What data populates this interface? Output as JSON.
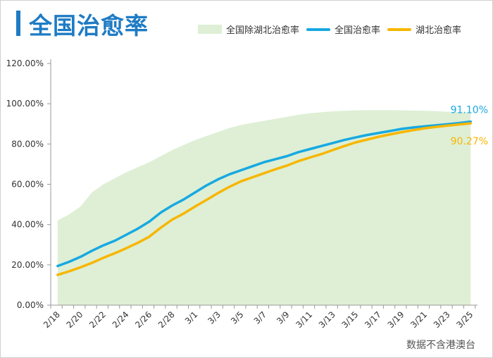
{
  "title": "全国治愈率",
  "source": "数据不含港澳台",
  "colors": {
    "area": "#deefd5",
    "national": "#17a9e1",
    "hubei": "#f7b600",
    "title": "#1e7bc4"
  },
  "chart_data": {
    "type": "line",
    "title": "全国治愈率",
    "xlabel": "",
    "ylabel": "",
    "ylim": [
      0,
      120
    ],
    "yticks": [
      "0.00%",
      "20.00%",
      "40.00%",
      "60.00%",
      "80.00%",
      "100.00%",
      "120.00%"
    ],
    "x": [
      "2/18",
      "2/19",
      "2/20",
      "2/21",
      "2/22",
      "2/23",
      "2/24",
      "2/25",
      "2/26",
      "2/27",
      "2/28",
      "2/29",
      "3/1",
      "3/2",
      "3/3",
      "3/4",
      "3/5",
      "3/6",
      "3/7",
      "3/8",
      "3/9",
      "3/10",
      "3/11",
      "3/12",
      "3/13",
      "3/14",
      "3/15",
      "3/16",
      "3/17",
      "3/18",
      "3/19",
      "3/20",
      "3/21",
      "3/22",
      "3/23",
      "3/24",
      "3/25"
    ],
    "xtick_labels": [
      "2/18",
      "2/20",
      "2/22",
      "2/24",
      "2/26",
      "2/28",
      "3/1",
      "3/3",
      "3/5",
      "3/7",
      "3/9",
      "3/11",
      "3/13",
      "3/15",
      "3/17",
      "3/19",
      "3/21",
      "3/23",
      "3/25"
    ],
    "legend_position": "top",
    "series": [
      {
        "name": "全国除湖北治愈率",
        "kind": "area",
        "values": [
          42,
          45,
          49,
          56,
          60,
          63,
          66,
          68.5,
          71,
          74,
          77,
          79.5,
          82,
          84,
          86,
          88,
          89.5,
          90.5,
          91.5,
          92.5,
          93.5,
          94.5,
          95.3,
          95.8,
          96.2,
          96.5,
          96.7,
          96.8,
          96.8,
          96.8,
          96.7,
          96.6,
          96.5,
          96.3,
          96,
          95.8,
          95.5
        ]
      },
      {
        "name": "全国治愈率",
        "kind": "line",
        "values": [
          19.4,
          21.5,
          24,
          27,
          29.7,
          32,
          35,
          38,
          41.5,
          46,
          49.5,
          52.5,
          56,
          59.5,
          62.5,
          65,
          67,
          69,
          71,
          72.5,
          74,
          76,
          77.5,
          79,
          80.5,
          82,
          83.3,
          84.5,
          85.5,
          86.5,
          87.5,
          88.2,
          88.8,
          89.3,
          89.8,
          90.4,
          91.1
        ]
      },
      {
        "name": "湖北治愈率",
        "kind": "line",
        "values": [
          15,
          16.8,
          18.8,
          21,
          23.5,
          25.8,
          28.3,
          31,
          34,
          38.5,
          42.5,
          45.5,
          49,
          52.3,
          55.7,
          58.8,
          61.5,
          63.5,
          65.5,
          67.5,
          69.3,
          71.5,
          73.3,
          75,
          77,
          79,
          80.8,
          82.2,
          83.6,
          84.8,
          85.9,
          86.9,
          87.8,
          88.5,
          89.1,
          89.7,
          90.27
        ]
      }
    ],
    "annotations": [
      {
        "series": "全国治愈率",
        "text": "91.10%"
      },
      {
        "series": "湖北治愈率",
        "text": "90.27%"
      }
    ]
  }
}
